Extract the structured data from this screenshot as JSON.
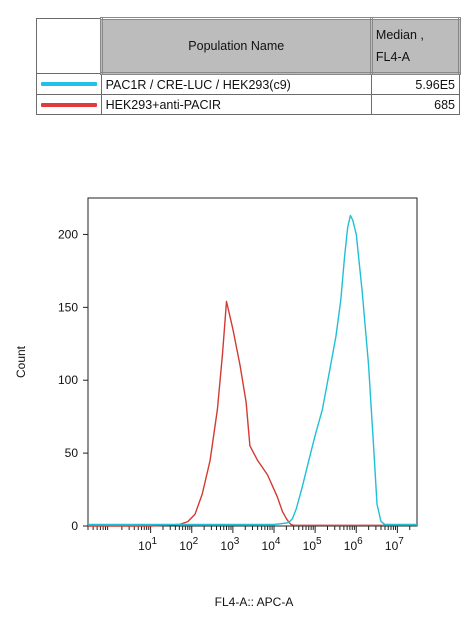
{
  "legend": {
    "header_name": "Population Name",
    "header_median_line1": "Median ,",
    "header_median_line2": "FL4-A",
    "rows": [
      {
        "name": "PAC1R / CRE-LUC / HEK293(c9)",
        "median": "5.96E5",
        "color": "#22c0e8"
      },
      {
        "name": "HEK293+anti-PACIR",
        "median": "685",
        "color": "#e03a3a"
      }
    ]
  },
  "chart_data": {
    "type": "line",
    "title": "",
    "xlabel": "FL4-A:: APC-A",
    "ylabel": "Count",
    "xscale": "log",
    "xlim": [
      0.3,
      30000000
    ],
    "ylim": [
      0,
      225
    ],
    "y_ticks": [
      0,
      50,
      100,
      150,
      200
    ],
    "x_ticks": [
      {
        "base": "10",
        "exp": "1",
        "value": 10
      },
      {
        "base": "10",
        "exp": "2",
        "value": 100
      },
      {
        "base": "10",
        "exp": "3",
        "value": 1000
      },
      {
        "base": "10",
        "exp": "4",
        "value": 10000
      },
      {
        "base": "10",
        "exp": "5",
        "value": 100000
      },
      {
        "base": "10",
        "exp": "6",
        "value": 1000000
      },
      {
        "base": "10",
        "exp": "7",
        "value": 10000000
      }
    ],
    "series": [
      {
        "name": "HEK293+anti-PACIR",
        "color": "#d23a32",
        "x": [
          0.3,
          10,
          50,
          80,
          120,
          180,
          280,
          420,
          560,
          700,
          1000,
          1500,
          2100,
          2600,
          4000,
          7000,
          12000,
          16000,
          20000,
          24000,
          26000,
          30000,
          40000,
          1000000,
          10000000,
          30000000
        ],
        "y": [
          0,
          0,
          1,
          3,
          8,
          22,
          45,
          80,
          118,
          154,
          135,
          110,
          85,
          55,
          45,
          35,
          20,
          10,
          5,
          2,
          1,
          0.5,
          0.5,
          0.5,
          0.5,
          0.5
        ]
      },
      {
        "name": "PAC1R / CRE-LUC / HEK293(c9)",
        "color": "#21bfd6",
        "x": [
          0.3,
          10000,
          20000,
          24000,
          28000,
          35000,
          50000,
          70000,
          100000,
          150000,
          220000,
          320000,
          420000,
          520000,
          620000,
          720000,
          820000,
          1000000,
          1400000,
          2000000,
          2700000,
          3200000,
          4000000,
          5000000,
          30000000
        ],
        "y": [
          1,
          1,
          2,
          3,
          5,
          12,
          28,
          45,
          62,
          80,
          105,
          130,
          155,
          185,
          205,
          213,
          210,
          200,
          160,
          110,
          50,
          15,
          3,
          1,
          1
        ]
      }
    ]
  }
}
